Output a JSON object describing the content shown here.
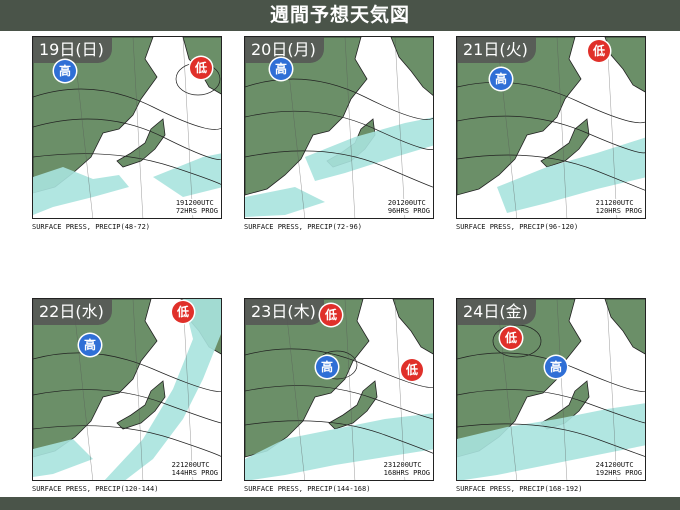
{
  "header": {
    "title": "週間予想天気図"
  },
  "panels": [
    {
      "date": "19日(日)",
      "stamp": [
        "191200UTC",
        "72HRS PROG"
      ],
      "caption": "SURFACE PRESS, PRECIP(48-72)",
      "marks": [
        {
          "type": "high",
          "label": "高"
        },
        {
          "type": "low",
          "label": "低"
        }
      ]
    },
    {
      "date": "20日(月)",
      "stamp": [
        "201200UTC",
        "96HRS PROG"
      ],
      "caption": "SURFACE PRESS, PRECIP(72-96)",
      "marks": [
        {
          "type": "high",
          "label": "高"
        }
      ]
    },
    {
      "date": "21日(火)",
      "stamp": [
        "211200UTC",
        "120HRS PROG"
      ],
      "caption": "SURFACE PRESS, PRECIP(96-120)",
      "marks": [
        {
          "type": "high",
          "label": "高"
        },
        {
          "type": "low",
          "label": "低"
        }
      ]
    },
    {
      "date": "22日(水)",
      "stamp": [
        "221200UTC",
        "144HRS PROG"
      ],
      "caption": "SURFACE PRESS, PRECIP(120-144)",
      "marks": [
        {
          "type": "high",
          "label": "高"
        },
        {
          "type": "low",
          "label": "低"
        }
      ]
    },
    {
      "date": "23日(木)",
      "stamp": [
        "231200UTC",
        "168HRS PROG"
      ],
      "caption": "SURFACE PRESS, PRECIP(144-168)",
      "marks": [
        {
          "type": "high",
          "label": "高"
        },
        {
          "type": "low",
          "label": "低"
        },
        {
          "type": "low",
          "label": "低"
        }
      ]
    },
    {
      "date": "24日(金)",
      "stamp": [
        "241200UTC",
        "192HRS PROG"
      ],
      "caption": "SURFACE PRESS, PRECIP(168-192)",
      "marks": [
        {
          "type": "low",
          "label": "低"
        },
        {
          "type": "high",
          "label": "高"
        }
      ]
    }
  ],
  "colors": {
    "header_bg": "#4a5449",
    "land": "#6b8f68",
    "sea": "#ffffff",
    "precip": "#a9e3de",
    "high": "#2f6fd6",
    "low": "#e0302a"
  }
}
